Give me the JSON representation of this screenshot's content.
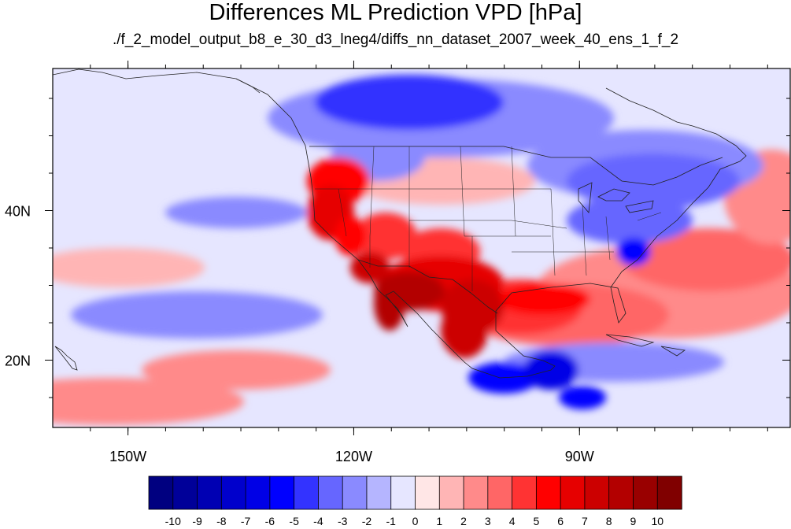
{
  "chart_data": {
    "type": "heatmap",
    "title": "Differences ML Prediction VPD [hPa]",
    "subtitle": "./f_2_model_output_b8_e_30_d3_lneg4/diffs_nn_dataset_2007_week_40_ens_1_f_2",
    "map_region": "North America and adjacent Pacific / Atlantic",
    "lon_range": [
      -160,
      -62
    ],
    "lat_range": [
      11,
      59
    ],
    "x_ticks": [
      {
        "value": -150,
        "label": "150W"
      },
      {
        "value": -120,
        "label": "120W"
      },
      {
        "value": -90,
        "label": "90W"
      }
    ],
    "y_ticks": [
      {
        "value": 40,
        "label": "40N"
      },
      {
        "value": 20,
        "label": "20N"
      }
    ],
    "colorbar": {
      "labels": [
        "-10",
        "-9",
        "-8",
        "-7",
        "-6",
        "-5",
        "-4",
        "-3",
        "-2",
        "-1",
        "0",
        "1",
        "2",
        "3",
        "4",
        "5",
        "6",
        "7",
        "8",
        "9",
        "10"
      ],
      "colors": [
        "#000080",
        "#000099",
        "#0000b3",
        "#0000cc",
        "#0000e6",
        "#0000ff",
        "#3333ff",
        "#6666ff",
        "#8a8aff",
        "#b5b5ff",
        "#e6e6ff",
        "#ffe6e6",
        "#ffb5b5",
        "#ff8a8a",
        "#ff6666",
        "#ff3333",
        "#ff0000",
        "#e60000",
        "#cc0000",
        "#b30000",
        "#990000",
        "#800000"
      ]
    },
    "features": [
      {
        "region": "Southwest US / northern Mexico",
        "difference": 7
      },
      {
        "region": "Baja California",
        "difference": 8
      },
      {
        "region": "California coast",
        "difference": 6
      },
      {
        "region": "Texas / Gulf of Mexico",
        "difference": 4
      },
      {
        "region": "Northeast US / Great Lakes",
        "difference": -3
      },
      {
        "region": "Central Canada",
        "difference": -4
      },
      {
        "region": "Southern Mexico",
        "difference": -5
      },
      {
        "region": "Central Atlantic",
        "difference": 2
      },
      {
        "region": "Eastern Pacific",
        "difference": -1
      }
    ]
  }
}
